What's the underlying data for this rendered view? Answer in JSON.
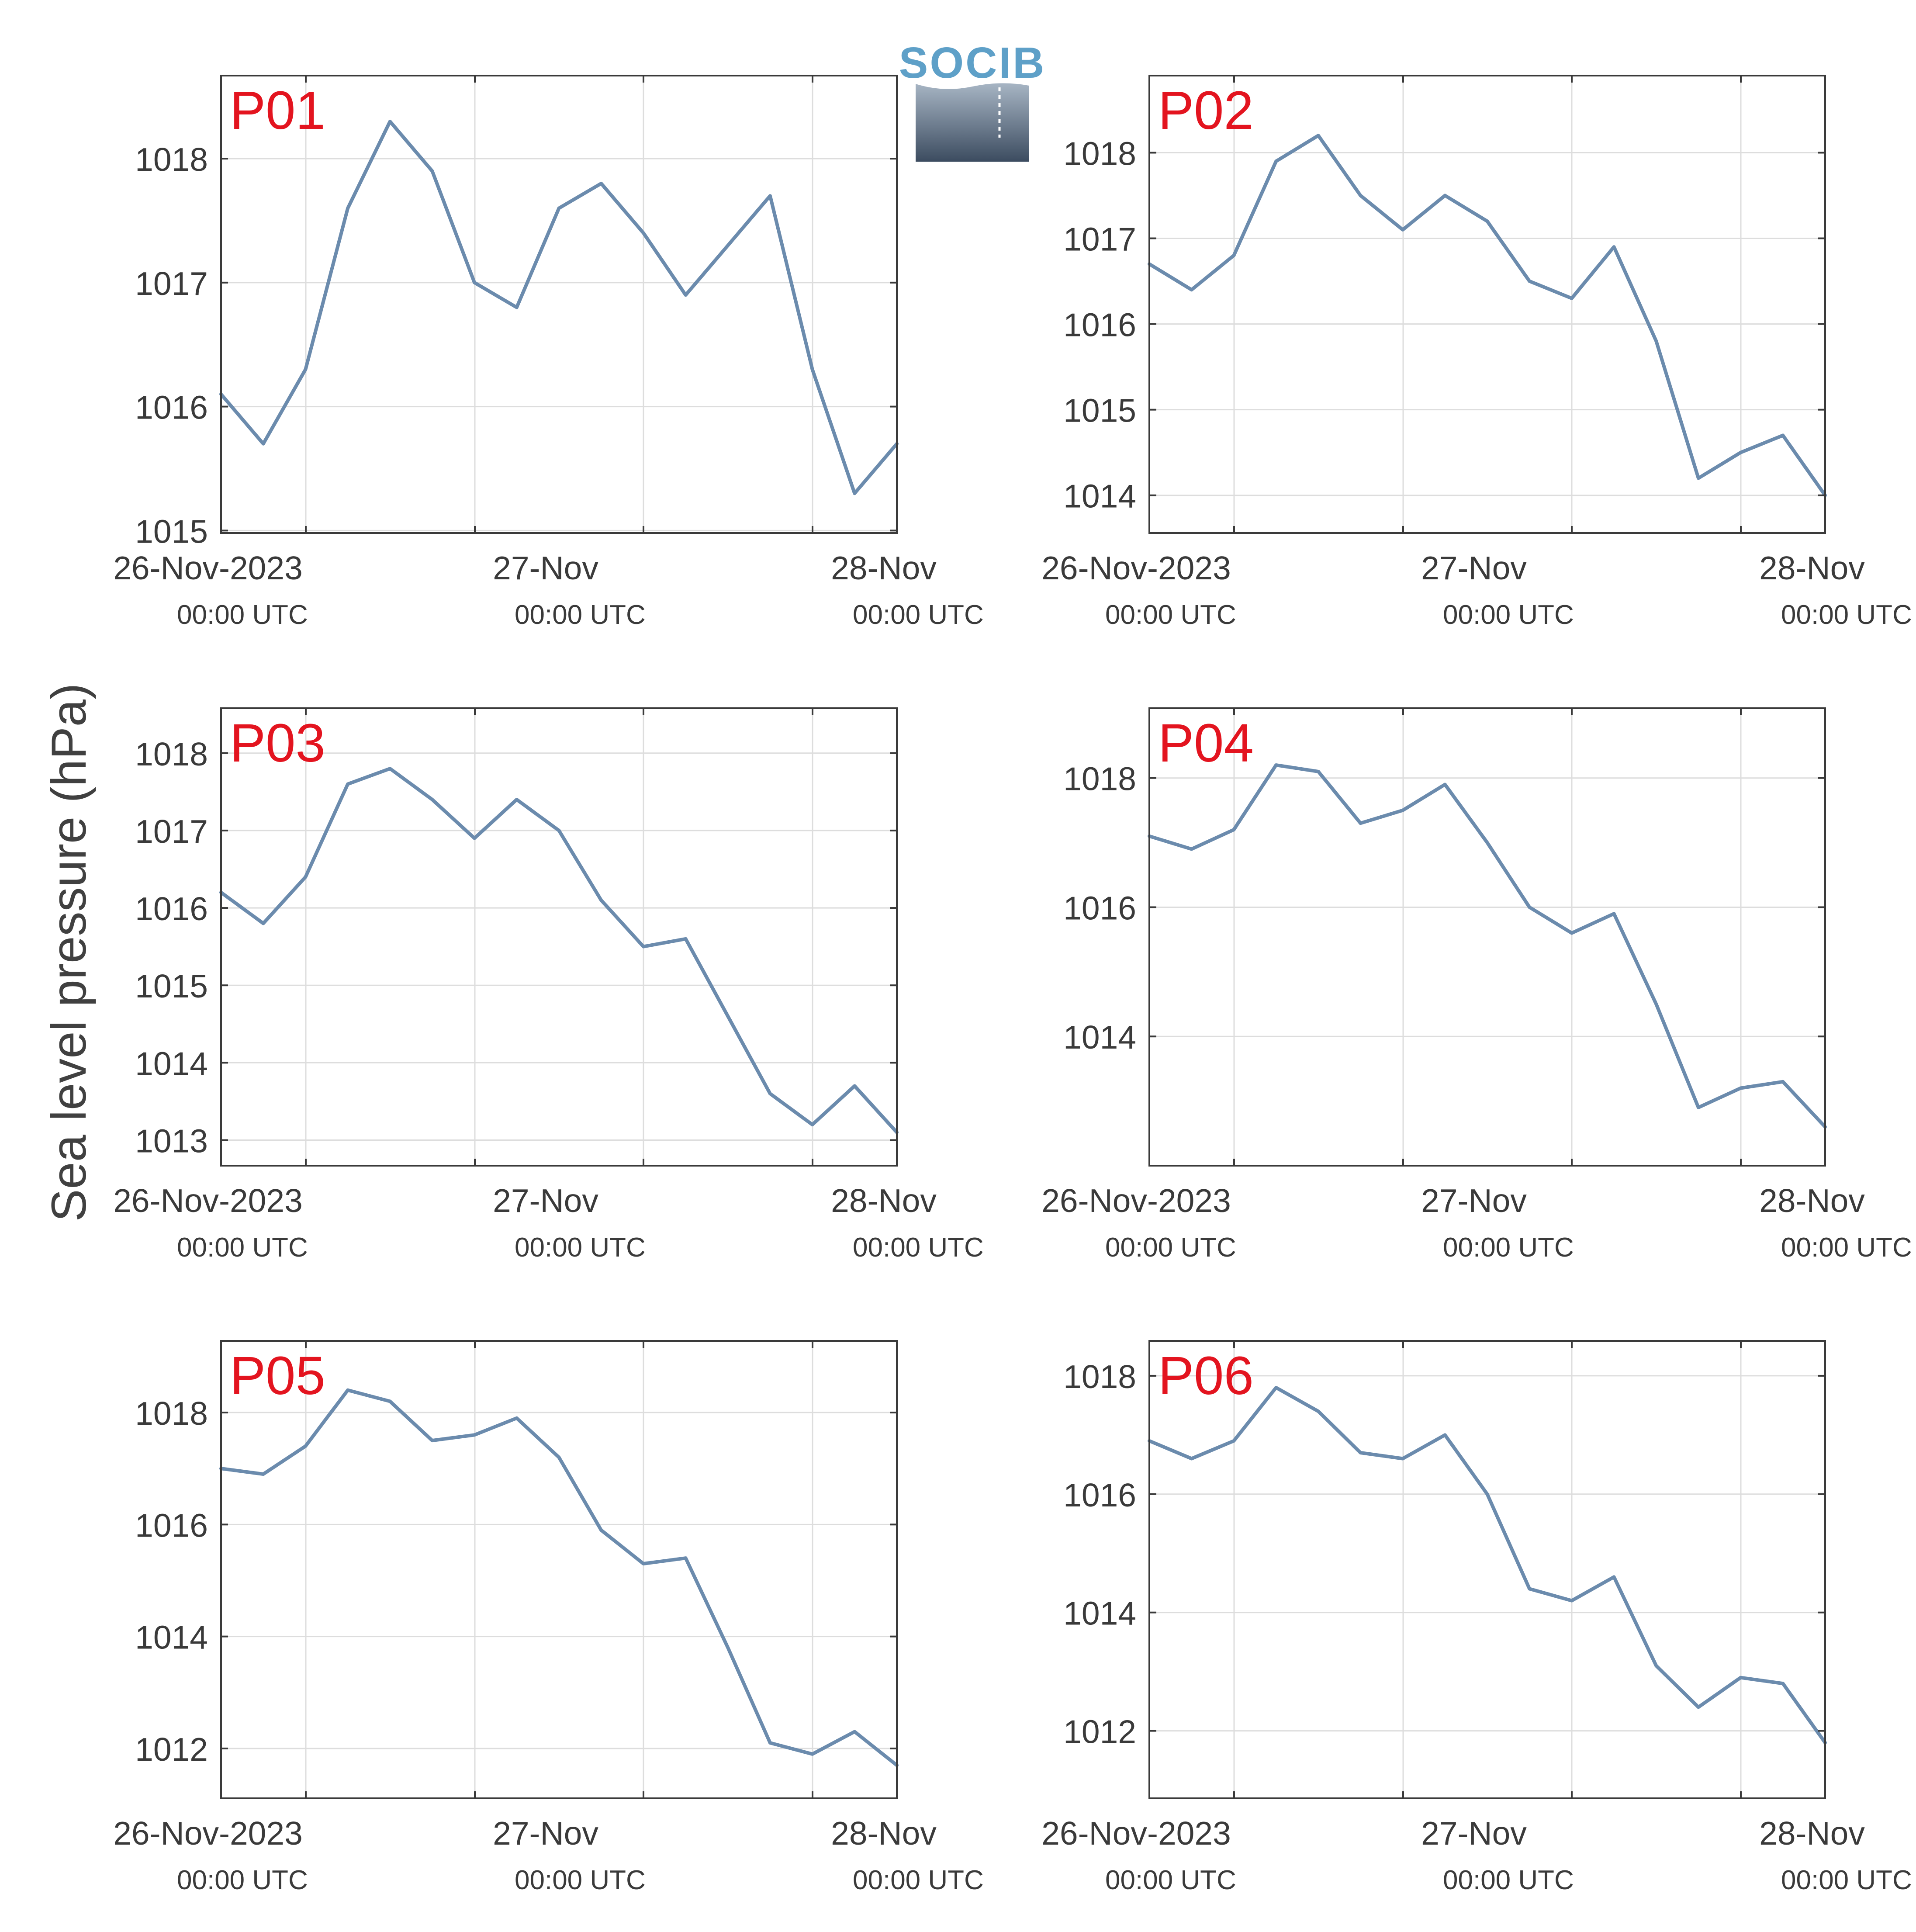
{
  "ylabel": "Sea level pressure (hPa)",
  "logo": {
    "text": "SOCIB"
  },
  "x_axis": {
    "tick_labels": [
      "26-Nov-2023",
      "27-Nov",
      "28-Nov"
    ],
    "sub_labels": [
      "00:00 UTC",
      "00:00 UTC",
      "00:00 UTC"
    ]
  },
  "colors": {
    "line": "#6b8bad",
    "panel_label": "#e3141f",
    "axes": "#3a3a3a",
    "grid": "#dddddd",
    "background": "#ffffff"
  },
  "chart_data": [
    {
      "type": "line",
      "title": "P01",
      "x": [
        "2023-11-26 00:00",
        "2023-11-26 03:00",
        "2023-11-26 06:00",
        "2023-11-26 09:00",
        "2023-11-26 12:00",
        "2023-11-26 15:00",
        "2023-11-26 18:00",
        "2023-11-26 21:00",
        "2023-11-27 00:00",
        "2023-11-27 03:00",
        "2023-11-27 06:00",
        "2023-11-27 09:00",
        "2023-11-27 12:00",
        "2023-11-27 15:00",
        "2023-11-27 18:00",
        "2023-11-27 21:00",
        "2023-11-28 00:00"
      ],
      "y": [
        1016.1,
        1015.7,
        1016.3,
        1017.6,
        1018.3,
        1017.9,
        1017.0,
        1016.8,
        1017.6,
        1017.8,
        1017.4,
        1016.9,
        1017.3,
        1017.7,
        1016.3,
        1015.3,
        1015.7
      ],
      "ylim": [
        1014.98,
        1018.67
      ],
      "yticks": [
        1015,
        1016,
        1017,
        1018
      ],
      "grid": true
    },
    {
      "type": "line",
      "title": "P02",
      "x": [
        "2023-11-26 00:00",
        "2023-11-26 03:00",
        "2023-11-26 06:00",
        "2023-11-26 09:00",
        "2023-11-26 12:00",
        "2023-11-26 15:00",
        "2023-11-26 18:00",
        "2023-11-26 21:00",
        "2023-11-27 00:00",
        "2023-11-27 03:00",
        "2023-11-27 06:00",
        "2023-11-27 09:00",
        "2023-11-27 12:00",
        "2023-11-27 15:00",
        "2023-11-27 18:00",
        "2023-11-27 21:00",
        "2023-11-28 00:00"
      ],
      "y": [
        1016.7,
        1016.4,
        1016.8,
        1017.9,
        1018.2,
        1017.5,
        1017.1,
        1017.5,
        1017.2,
        1016.5,
        1016.3,
        1016.9,
        1015.8,
        1014.2,
        1014.5,
        1014.7,
        1014.0
      ],
      "ylim": [
        1013.56,
        1018.9
      ],
      "yticks": [
        1014,
        1015,
        1016,
        1017,
        1018
      ],
      "grid": true
    },
    {
      "type": "line",
      "title": "P03",
      "x": [
        "2023-11-26 00:00",
        "2023-11-26 03:00",
        "2023-11-26 06:00",
        "2023-11-26 09:00",
        "2023-11-26 12:00",
        "2023-11-26 15:00",
        "2023-11-26 18:00",
        "2023-11-26 21:00",
        "2023-11-27 00:00",
        "2023-11-27 03:00",
        "2023-11-27 06:00",
        "2023-11-27 09:00",
        "2023-11-27 12:00",
        "2023-11-27 15:00",
        "2023-11-27 18:00",
        "2023-11-27 21:00",
        "2023-11-28 00:00"
      ],
      "y": [
        1016.2,
        1015.8,
        1016.4,
        1017.6,
        1017.8,
        1017.4,
        1016.9,
        1017.4,
        1017.0,
        1016.1,
        1015.5,
        1015.6,
        1014.6,
        1013.6,
        1013.2,
        1013.7,
        1013.1
      ],
      "ylim": [
        1012.67,
        1018.58
      ],
      "yticks": [
        1013,
        1014,
        1015,
        1016,
        1017,
        1018
      ],
      "grid": true
    },
    {
      "type": "line",
      "title": "P04",
      "x": [
        "2023-11-26 00:00",
        "2023-11-26 03:00",
        "2023-11-26 06:00",
        "2023-11-26 09:00",
        "2023-11-26 12:00",
        "2023-11-26 15:00",
        "2023-11-26 18:00",
        "2023-11-26 21:00",
        "2023-11-27 00:00",
        "2023-11-27 03:00",
        "2023-11-27 06:00",
        "2023-11-27 09:00",
        "2023-11-27 12:00",
        "2023-11-27 15:00",
        "2023-11-27 18:00",
        "2023-11-27 21:00",
        "2023-11-28 00:00"
      ],
      "y": [
        1017.1,
        1016.9,
        1017.2,
        1018.2,
        1018.1,
        1017.3,
        1017.5,
        1017.9,
        1017.0,
        1016.0,
        1015.6,
        1015.9,
        1014.5,
        1012.9,
        1013.2,
        1013.3,
        1012.6
      ],
      "ylim": [
        1012.0,
        1019.08
      ],
      "yticks": [
        1014,
        1016,
        1018
      ],
      "grid": true
    },
    {
      "type": "line",
      "title": "P05",
      "x": [
        "2023-11-26 00:00",
        "2023-11-26 03:00",
        "2023-11-26 06:00",
        "2023-11-26 09:00",
        "2023-11-26 12:00",
        "2023-11-26 15:00",
        "2023-11-26 18:00",
        "2023-11-26 21:00",
        "2023-11-27 00:00",
        "2023-11-27 03:00",
        "2023-11-27 06:00",
        "2023-11-27 09:00",
        "2023-11-27 12:00",
        "2023-11-27 15:00",
        "2023-11-27 18:00",
        "2023-11-27 21:00",
        "2023-11-28 00:00"
      ],
      "y": [
        1017.0,
        1016.9,
        1017.4,
        1018.4,
        1018.2,
        1017.5,
        1017.6,
        1017.9,
        1017.2,
        1015.9,
        1015.3,
        1015.4,
        1013.8,
        1012.1,
        1011.9,
        1012.3,
        1011.7
      ],
      "ylim": [
        1011.11,
        1019.28
      ],
      "yticks": [
        1012,
        1014,
        1016,
        1018
      ],
      "grid": true
    },
    {
      "type": "line",
      "title": "P06",
      "x": [
        "2023-11-26 00:00",
        "2023-11-26 03:00",
        "2023-11-26 06:00",
        "2023-11-26 09:00",
        "2023-11-26 12:00",
        "2023-11-26 15:00",
        "2023-11-26 18:00",
        "2023-11-26 21:00",
        "2023-11-27 00:00",
        "2023-11-27 03:00",
        "2023-11-27 06:00",
        "2023-11-27 09:00",
        "2023-11-27 12:00",
        "2023-11-27 15:00",
        "2023-11-27 18:00",
        "2023-11-27 21:00",
        "2023-11-28 00:00"
      ],
      "y": [
        1016.9,
        1016.6,
        1016.9,
        1017.8,
        1017.4,
        1016.7,
        1016.6,
        1017.0,
        1016.0,
        1014.4,
        1014.2,
        1014.6,
        1013.1,
        1012.4,
        1012.9,
        1012.8,
        1011.8
      ],
      "ylim": [
        1010.86,
        1018.59
      ],
      "yticks": [
        1012,
        1014,
        1016,
        1018
      ],
      "grid": true
    }
  ]
}
